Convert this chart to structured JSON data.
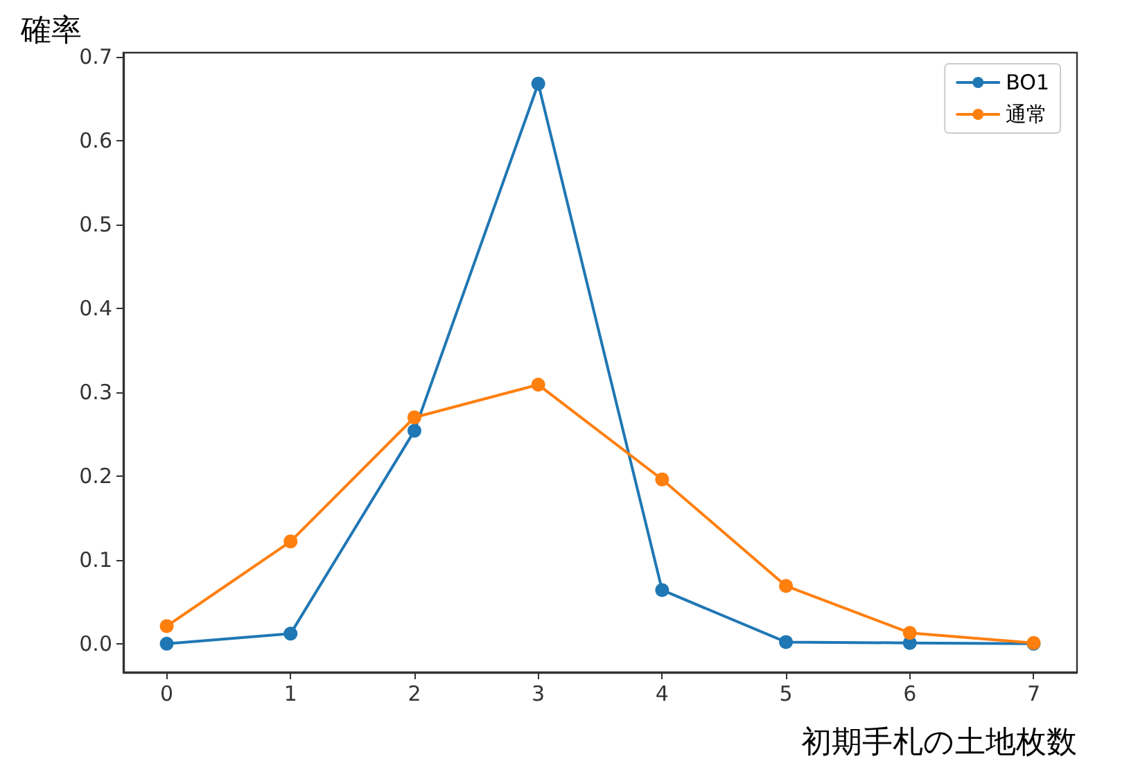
{
  "chart_data": {
    "type": "line",
    "xlabel": "初期手札の土地枚数",
    "ylabel": "確率",
    "x": [
      0,
      1,
      2,
      3,
      4,
      5,
      6,
      7
    ],
    "series": [
      {
        "name": "BO1",
        "color": "#1f77b4",
        "values": [
          0,
          0.012,
          0.254,
          0.668,
          0.064,
          0.002,
          0.001,
          0
        ]
      },
      {
        "name": "通常",
        "color": "#ff7f0e",
        "values": [
          0.021,
          0.122,
          0.27,
          0.309,
          0.196,
          0.069,
          0.013,
          0.001
        ]
      }
    ],
    "xlim": [
      -0.35,
      7.35
    ],
    "xticks": [
      0,
      1,
      2,
      3,
      4,
      5,
      6,
      7
    ],
    "ylim": [
      -0.034,
      0.705
    ],
    "yticks": [
      {
        "value": 0,
        "label": "0.0"
      },
      0.1,
      0.2,
      0.3,
      0.4,
      0.5,
      0.6,
      0.7
    ],
    "grid": false,
    "legend": "top right",
    "marker": "circle",
    "line_style": "solid"
  }
}
